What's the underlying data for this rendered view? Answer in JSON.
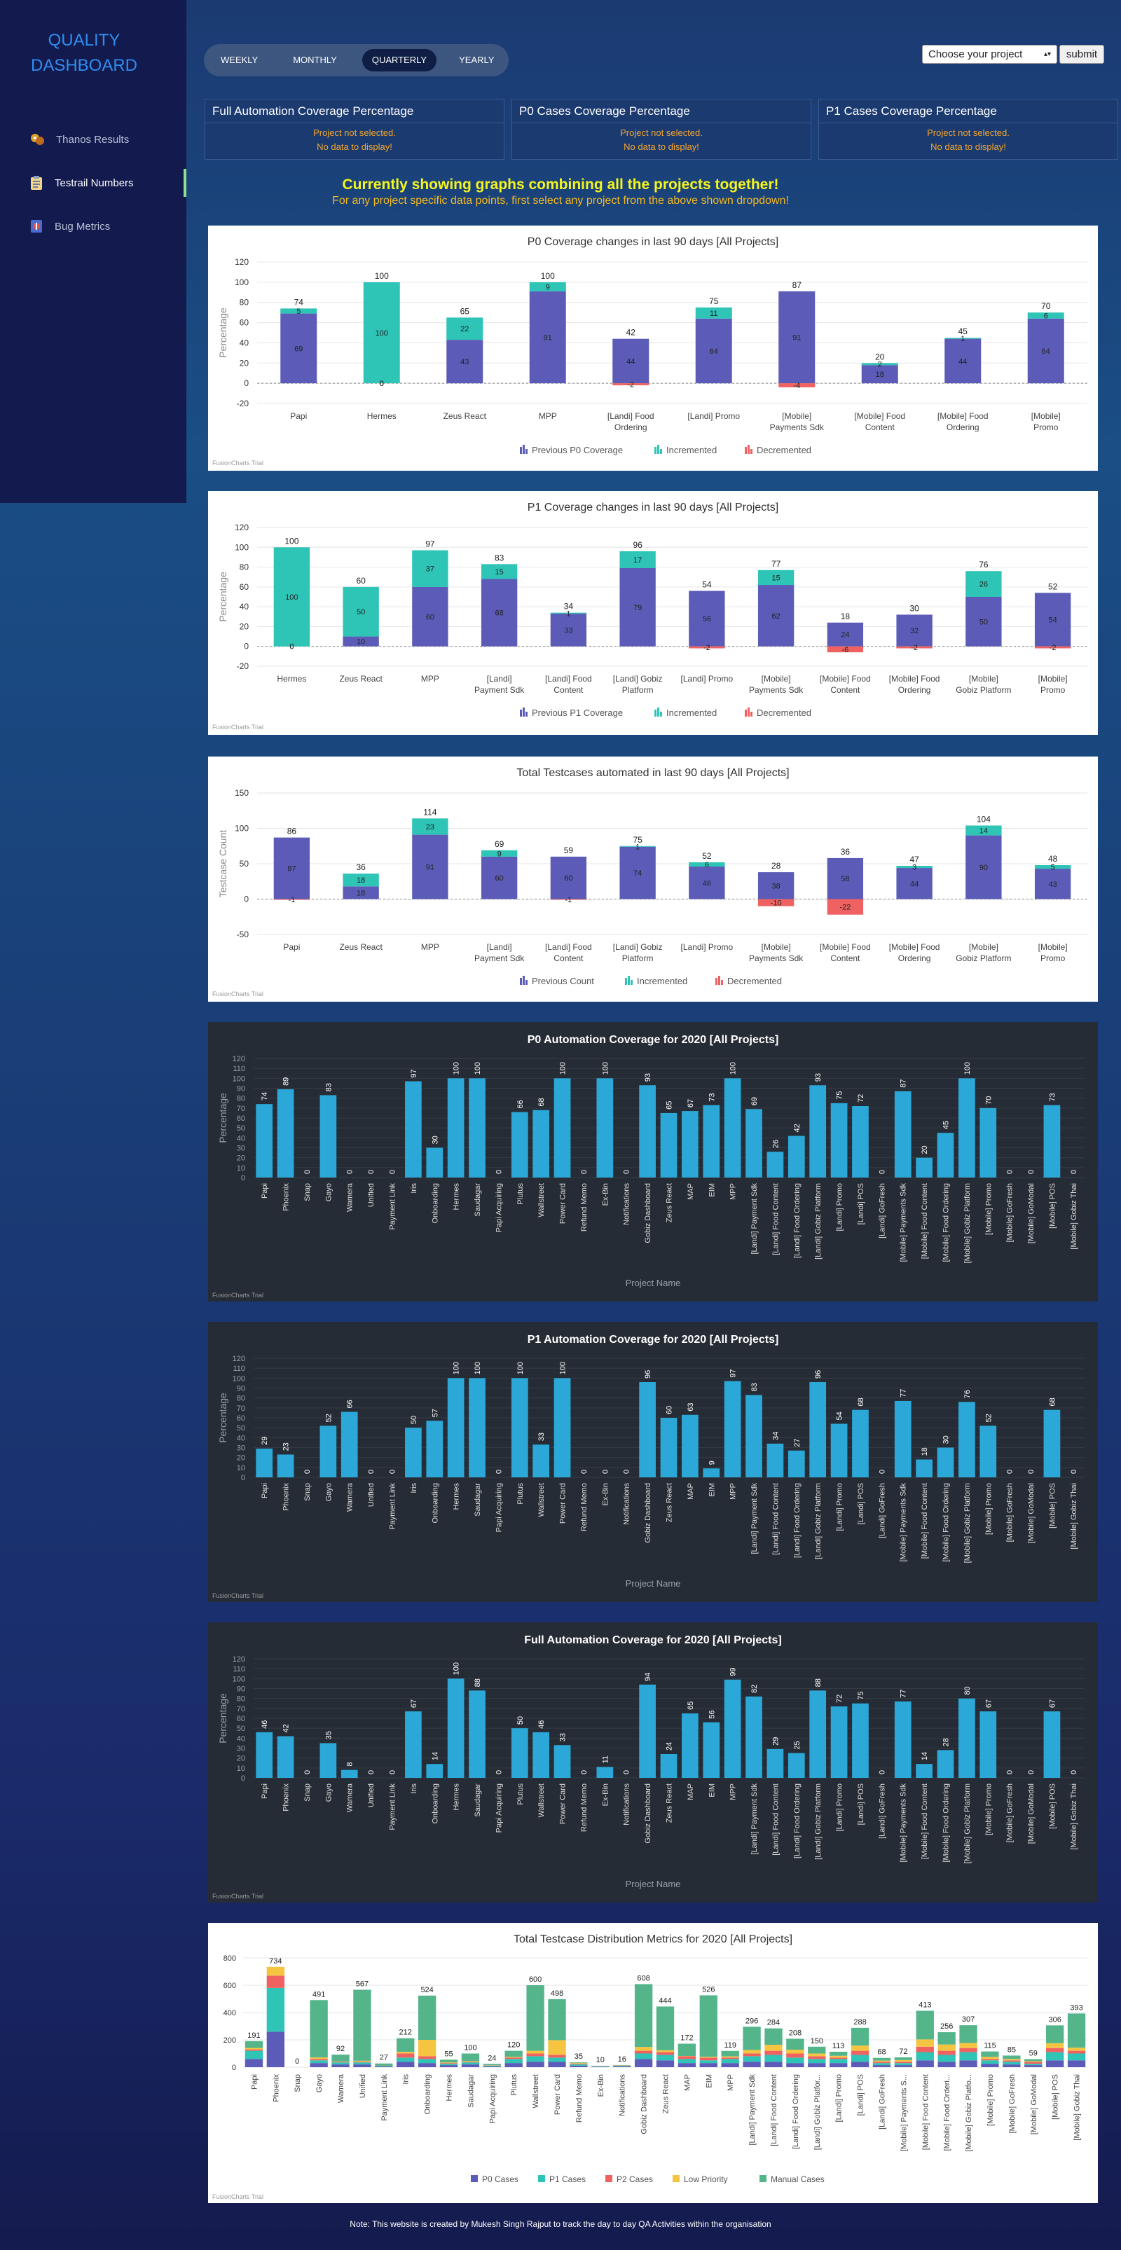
{
  "app": {
    "title": "QUALITY DASHBOARD"
  },
  "sidebar": {
    "items": [
      {
        "label": "Thanos Results",
        "icon": "robot-icon"
      },
      {
        "label": "Testrail Numbers",
        "icon": "clipboard-icon",
        "active": true
      },
      {
        "label": "Bug Metrics",
        "icon": "bug-icon"
      }
    ]
  },
  "period": {
    "options": [
      "WEEKLY",
      "MONTHLY",
      "QUARTERLY",
      "YEARLY"
    ],
    "selected": "QUARTERLY"
  },
  "project": {
    "placeholder": "Choose your project",
    "submit": "submit"
  },
  "coverage_cards": [
    {
      "title": "Full Automation Coverage Percentage",
      "line1": "Project not selected.",
      "line2": "No data to display!"
    },
    {
      "title": "P0 Cases Coverage Percentage",
      "line1": "Project not selected.",
      "line2": "No data to display!"
    },
    {
      "title": "P1 Cases Coverage Percentage",
      "line1": "Project not selected.",
      "line2": "No data to display!"
    }
  ],
  "notice": {
    "headline": "Currently showing graphs combining all the projects together!",
    "sub": "For any project specific data points, first select any project from the above shown dropdown!"
  },
  "credit": "FusionCharts Trial",
  "colors": {
    "previous": "#5c5cb8",
    "incremented": "#2ec4b6",
    "decremented": "#f06262",
    "bar": "#2ba8d8",
    "p0": "#5c5cb8",
    "p1": "#2ec4b6",
    "p2": "#f06262",
    "low": "#f5c542",
    "manual": "#55b58a",
    "accent": "#2f8ef0"
  },
  "chart_data": [
    {
      "type": "bar",
      "stacked": true,
      "title": "P0 Coverage changes in last 90 days [All Projects]",
      "ylabel": "Percentage",
      "ylim": [
        -20,
        120
      ],
      "yticks": [
        -20,
        0,
        20,
        40,
        60,
        80,
        100,
        120
      ],
      "categories": [
        "Papi",
        "Hermes",
        "Zeus React",
        "MPP",
        "[Landi] Food Ordering",
        "[Landi] Promo",
        "[Mobile] Payments Sdk",
        "[Mobile] Food Content",
        "[Mobile] Food Ordering",
        "[Mobile] Promo"
      ],
      "series": [
        {
          "name": "Previous P0 Coverage",
          "values": [
            69,
            0,
            43,
            91,
            44,
            64,
            91,
            18,
            44,
            64
          ]
        },
        {
          "name": "Incremented",
          "values": [
            5,
            100,
            22,
            9,
            0,
            11,
            0,
            2,
            1,
            6
          ]
        },
        {
          "name": "Decremented",
          "values": [
            0,
            0,
            0,
            0,
            -2,
            0,
            -4,
            0,
            0,
            0
          ]
        }
      ],
      "totals": [
        74,
        100,
        65,
        100,
        42,
        75,
        87,
        20,
        45,
        70
      ]
    },
    {
      "type": "bar",
      "stacked": true,
      "title": "P1 Coverage changes in last 90 days [All Projects]",
      "ylabel": "Percentage",
      "ylim": [
        -20,
        120
      ],
      "yticks": [
        -20,
        0,
        20,
        40,
        60,
        80,
        100,
        120
      ],
      "categories": [
        "Hermes",
        "Zeus React",
        "MPP",
        "[Landi] Payment Sdk",
        "[Landi] Food Content",
        "[Landi] Gobiz Platform",
        "[Landi] Promo",
        "[Mobile] Payments Sdk",
        "[Mobile] Food Content",
        "[Mobile] Food Ordering",
        "[Mobile] Gobiz Platform",
        "[Mobile] Promo"
      ],
      "series": [
        {
          "name": "Previous P1 Coverage",
          "values": [
            0,
            10,
            60,
            68,
            33,
            79,
            56,
            62,
            24,
            32,
            50,
            54
          ]
        },
        {
          "name": "Incremented",
          "values": [
            100,
            50,
            37,
            15,
            1,
            17,
            0,
            15,
            0,
            0,
            26,
            0
          ]
        },
        {
          "name": "Decremented",
          "values": [
            0,
            0,
            0,
            0,
            0,
            0,
            -2,
            0,
            -6,
            -2,
            0,
            -2
          ]
        }
      ],
      "totals": [
        100,
        60,
        97,
        83,
        34,
        96,
        54,
        77,
        18,
        30,
        76,
        52
      ],
      "labels": [
        [
          0,
          100
        ],
        [
          10,
          50,
          18
        ],
        [
          60,
          37
        ],
        [
          68,
          15
        ],
        [
          33
        ],
        [
          79,
          17
        ],
        [
          56
        ],
        [
          62,
          15
        ],
        [
          24
        ],
        [
          32
        ],
        [
          50,
          26
        ],
        [
          54
        ]
      ]
    },
    {
      "type": "bar",
      "stacked": true,
      "title": "Total Testcases automated in last 90 days [All Projects]",
      "ylabel": "Testcase Count",
      "ylim": [
        -50,
        150
      ],
      "yticks": [
        -50,
        0,
        50,
        100,
        150
      ],
      "categories": [
        "Papi",
        "Zeus React",
        "MPP",
        "[Landi] Payment Sdk",
        "[Landi] Food Content",
        "[Landi] Gobiz Platform",
        "[Landi] Promo",
        "[Mobile] Payments Sdk",
        "[Mobile] Food Content",
        "[Mobile] Food Ordering",
        "[Mobile] Gobiz Platform",
        "[Mobile] Promo"
      ],
      "series": [
        {
          "name": "Previous Count",
          "values": [
            87,
            18,
            91,
            60,
            60,
            74,
            46,
            38,
            58,
            44,
            90,
            43
          ]
        },
        {
          "name": "Incremented",
          "values": [
            0,
            18,
            23,
            9,
            0,
            1,
            6,
            0,
            0,
            3,
            14,
            5
          ]
        },
        {
          "name": "Decremented",
          "values": [
            -1,
            0,
            0,
            0,
            -1,
            0,
            0,
            -10,
            -22,
            0,
            0,
            0
          ]
        }
      ],
      "totals": [
        86,
        36,
        114,
        69,
        59,
        75,
        52,
        28,
        36,
        47,
        104,
        48
      ]
    },
    {
      "type": "bar",
      "title": "P0 Automation Coverage for 2020 [All Projects]",
      "ylabel": "Percentage",
      "xlabel": "Project Name",
      "ylim": [
        0,
        120
      ],
      "yticks": [
        0,
        10,
        20,
        30,
        40,
        50,
        60,
        70,
        80,
        90,
        100,
        110,
        120
      ],
      "categories": [
        "Papi",
        "Phoenix",
        "Snap",
        "Gayo",
        "Wamera",
        "Unified",
        "Payment Link",
        "Iris",
        "Onboarding",
        "Hermes",
        "Saudagar",
        "Papi Acquiring",
        "Plutus",
        "Wallstreet",
        "Power Card",
        "Refund Memo",
        "Ex-Bin",
        "Notifications",
        "Gobiz Dashboard",
        "Zeus React",
        "MAP",
        "EIM",
        "MPP",
        "[Landi] Payment Sdk",
        "[Landi] Food Content",
        "[Landi] Food Ordering",
        "[Landi] Gobiz Platform",
        "[Landi] Promo",
        "[Landi] POS",
        "[Landi] GoFresh",
        "[Mobile] Payments Sdk",
        "[Mobile] Food Content",
        "[Mobile] Food Ordering",
        "[Mobile] Gobiz Platform",
        "[Mobile] Promo",
        "[Mobile] GoFresh",
        "[Mobile] GoModal",
        "[Mobile] POS",
        "[Mobile] Gobiz Thai"
      ],
      "values": [
        74,
        89,
        0,
        83,
        0,
        0,
        0,
        97,
        30,
        100,
        100,
        0,
        66,
        68,
        100,
        0,
        100,
        0,
        93,
        65,
        67,
        73,
        100,
        69,
        26,
        42,
        93,
        75,
        72,
        0,
        87,
        20,
        45,
        100,
        70,
        0,
        0,
        73,
        0
      ]
    },
    {
      "type": "bar",
      "title": "P1 Automation Coverage for 2020 [All Projects]",
      "ylabel": "Percentage",
      "xlabel": "Project Name",
      "ylim": [
        0,
        120
      ],
      "yticks": [
        0,
        10,
        20,
        30,
        40,
        50,
        60,
        70,
        80,
        90,
        100,
        110,
        120
      ],
      "categories": [
        "Papi",
        "Phoenix",
        "Snap",
        "Gayo",
        "Wamera",
        "Unified",
        "Payment Link",
        "Iris",
        "Onboarding",
        "Hermes",
        "Saudagar",
        "Papi Acquiring",
        "Plutus",
        "Wallstreet",
        "Power Card",
        "Refund Memo",
        "Ex-Bin",
        "Notifications",
        "Gobiz Dashboard",
        "Zeus React",
        "MAP",
        "EIM",
        "MPP",
        "[Landi] Payment Sdk",
        "[Landi] Food Content",
        "[Landi] Food Ordering",
        "[Landi] Gobiz Platform",
        "[Landi] Promo",
        "[Landi] POS",
        "[Landi] GoFresh",
        "[Mobile] Payments Sdk",
        "[Mobile] Food Content",
        "[Mobile] Food Ordering",
        "[Mobile] Gobiz Platform",
        "[Mobile] Promo",
        "[Mobile] GoFresh",
        "[Mobile] GoModal",
        "[Mobile] POS",
        "[Mobile] Gobiz Thai"
      ],
      "values": [
        29,
        23,
        0,
        52,
        66,
        0,
        0,
        50,
        57,
        100,
        100,
        0,
        100,
        33,
        100,
        0,
        0,
        0,
        96,
        60,
        63,
        9,
        97,
        83,
        34,
        27,
        96,
        54,
        68,
        0,
        77,
        18,
        30,
        76,
        52,
        0,
        0,
        68,
        0
      ]
    },
    {
      "type": "bar",
      "title": "Full Automation Coverage for 2020 [All Projects]",
      "ylabel": "Percentage",
      "xlabel": "Project Name",
      "ylim": [
        0,
        120
      ],
      "yticks": [
        0,
        10,
        20,
        30,
        40,
        50,
        60,
        70,
        80,
        90,
        100,
        110,
        120
      ],
      "categories": [
        "Papi",
        "Phoenix",
        "Snap",
        "Gayo",
        "Wamera",
        "Unified",
        "Payment Link",
        "Iris",
        "Onboarding",
        "Hermes",
        "Saudagar",
        "Papi Acquiring",
        "Plutus",
        "Wallstreet",
        "Power Card",
        "Refund Memo",
        "Ex-Bin",
        "Notifications",
        "Gobiz Dashboard",
        "Zeus React",
        "MAP",
        "EIM",
        "MPP",
        "[Landi] Payment Sdk",
        "[Landi] Food Content",
        "[Landi] Food Ordering",
        "[Landi] Gobiz Platform",
        "[Landi] Promo",
        "[Landi] POS",
        "[Landi] GoFresh",
        "[Mobile] Payments Sdk",
        "[Mobile] Food Content",
        "[Mobile] Food Ordering",
        "[Mobile] Gobiz Platform",
        "[Mobile] Promo",
        "[Mobile] GoFresh",
        "[Mobile] GoModal",
        "[Mobile] POS",
        "[Mobile] Gobiz Thai"
      ],
      "values": [
        46,
        42,
        0,
        35,
        8,
        0,
        0,
        67,
        14,
        100,
        88,
        0,
        50,
        46,
        33,
        0,
        11,
        0,
        94,
        24,
        65,
        56,
        99,
        82,
        29,
        25,
        88,
        72,
        75,
        0,
        77,
        14,
        28,
        80,
        67,
        0,
        0,
        67,
        0
      ]
    },
    {
      "type": "bar",
      "stacked": true,
      "title": "Total Testcase Distribution Metrics for 2020 [All Projects]",
      "ylim": [
        0,
        800
      ],
      "yticks": [
        0,
        200,
        400,
        600,
        800
      ],
      "categories": [
        "Papi",
        "Phoenix",
        "Snap",
        "Gayo",
        "Wamera",
        "Unified",
        "Payment Link",
        "Iris",
        "Onboarding",
        "Hermes",
        "Saudagar",
        "Papi Acquiring",
        "Plutus",
        "Wallstreet",
        "Power Card",
        "Refund Memo",
        "Ex-Bin",
        "Notifications",
        "Gobiz Dashboard",
        "Zeus React",
        "MAP",
        "EIM",
        "MPP",
        "[Landi] Payment Sdk",
        "[Landi] Food Content",
        "[Landi] Food Ordering",
        "[Landi] Gobiz Platfor...",
        "[Landi] Promo",
        "[Landi] POS",
        "[Landi] GoFresh",
        "[Mobile] Payments S...",
        "[Mobile] Food Content",
        "[Mobile] Food Orderi...",
        "[Mobile] Gobiz Platfo...",
        "[Mobile] Promo",
        "[Mobile] GoFresh",
        "[Mobile] GoModal",
        "[Mobile] POS",
        "[Mobile] Gobiz Thai"
      ],
      "totals": [
        191,
        734,
        0,
        491,
        92,
        567,
        27,
        212,
        524,
        55,
        100,
        24,
        120,
        600,
        498,
        35,
        10,
        16,
        608,
        444,
        172,
        526,
        119,
        296,
        284,
        208,
        150,
        113,
        288,
        68,
        72,
        413,
        256,
        307,
        115,
        85,
        59,
        306,
        393
      ],
      "series": [
        {
          "name": "P0 Cases",
          "values": [
            60,
            260,
            0,
            30,
            20,
            20,
            5,
            40,
            30,
            15,
            20,
            5,
            30,
            40,
            40,
            10,
            3,
            5,
            60,
            50,
            30,
            30,
            30,
            40,
            40,
            30,
            30,
            30,
            40,
            15,
            15,
            50,
            40,
            50,
            25,
            20,
            15,
            50,
            50
          ]
        },
        {
          "name": "P1 Cases",
          "values": [
            60,
            320,
            0,
            20,
            15,
            15,
            5,
            30,
            30,
            10,
            15,
            5,
            30,
            40,
            30,
            10,
            3,
            5,
            40,
            40,
            30,
            20,
            30,
            40,
            50,
            40,
            30,
            30,
            50,
            15,
            15,
            60,
            50,
            60,
            25,
            20,
            10,
            60,
            50
          ]
        },
        {
          "name": "P2 Cases",
          "values": [
            10,
            90,
            0,
            10,
            5,
            5,
            2,
            30,
            20,
            5,
            5,
            2,
            10,
            20,
            20,
            5,
            1,
            2,
            20,
            20,
            20,
            20,
            10,
            20,
            30,
            30,
            20,
            10,
            30,
            10,
            10,
            40,
            30,
            30,
            10,
            10,
            14,
            30,
            20
          ]
        },
        {
          "name": "Low Priority",
          "values": [
            11,
            64,
            0,
            11,
            2,
            7,
            0,
            12,
            120,
            5,
            5,
            2,
            5,
            20,
            108,
            5,
            1,
            2,
            28,
            14,
            2,
            6,
            9,
            26,
            44,
            28,
            20,
            13,
            38,
            8,
            12,
            53,
            46,
            37,
            15,
            10,
            5,
            36,
            23
          ]
        },
        {
          "name": "Manual Cases",
          "values": [
            50,
            0,
            0,
            420,
            50,
            520,
            15,
            100,
            324,
            20,
            55,
            10,
            45,
            480,
            300,
            5,
            2,
            2,
            460,
            320,
            90,
            450,
            40,
            170,
            120,
            80,
            50,
            30,
            130,
            20,
            20,
            210,
            90,
            130,
            40,
            25,
            15,
            130,
            250
          ]
        }
      ]
    }
  ]
}
